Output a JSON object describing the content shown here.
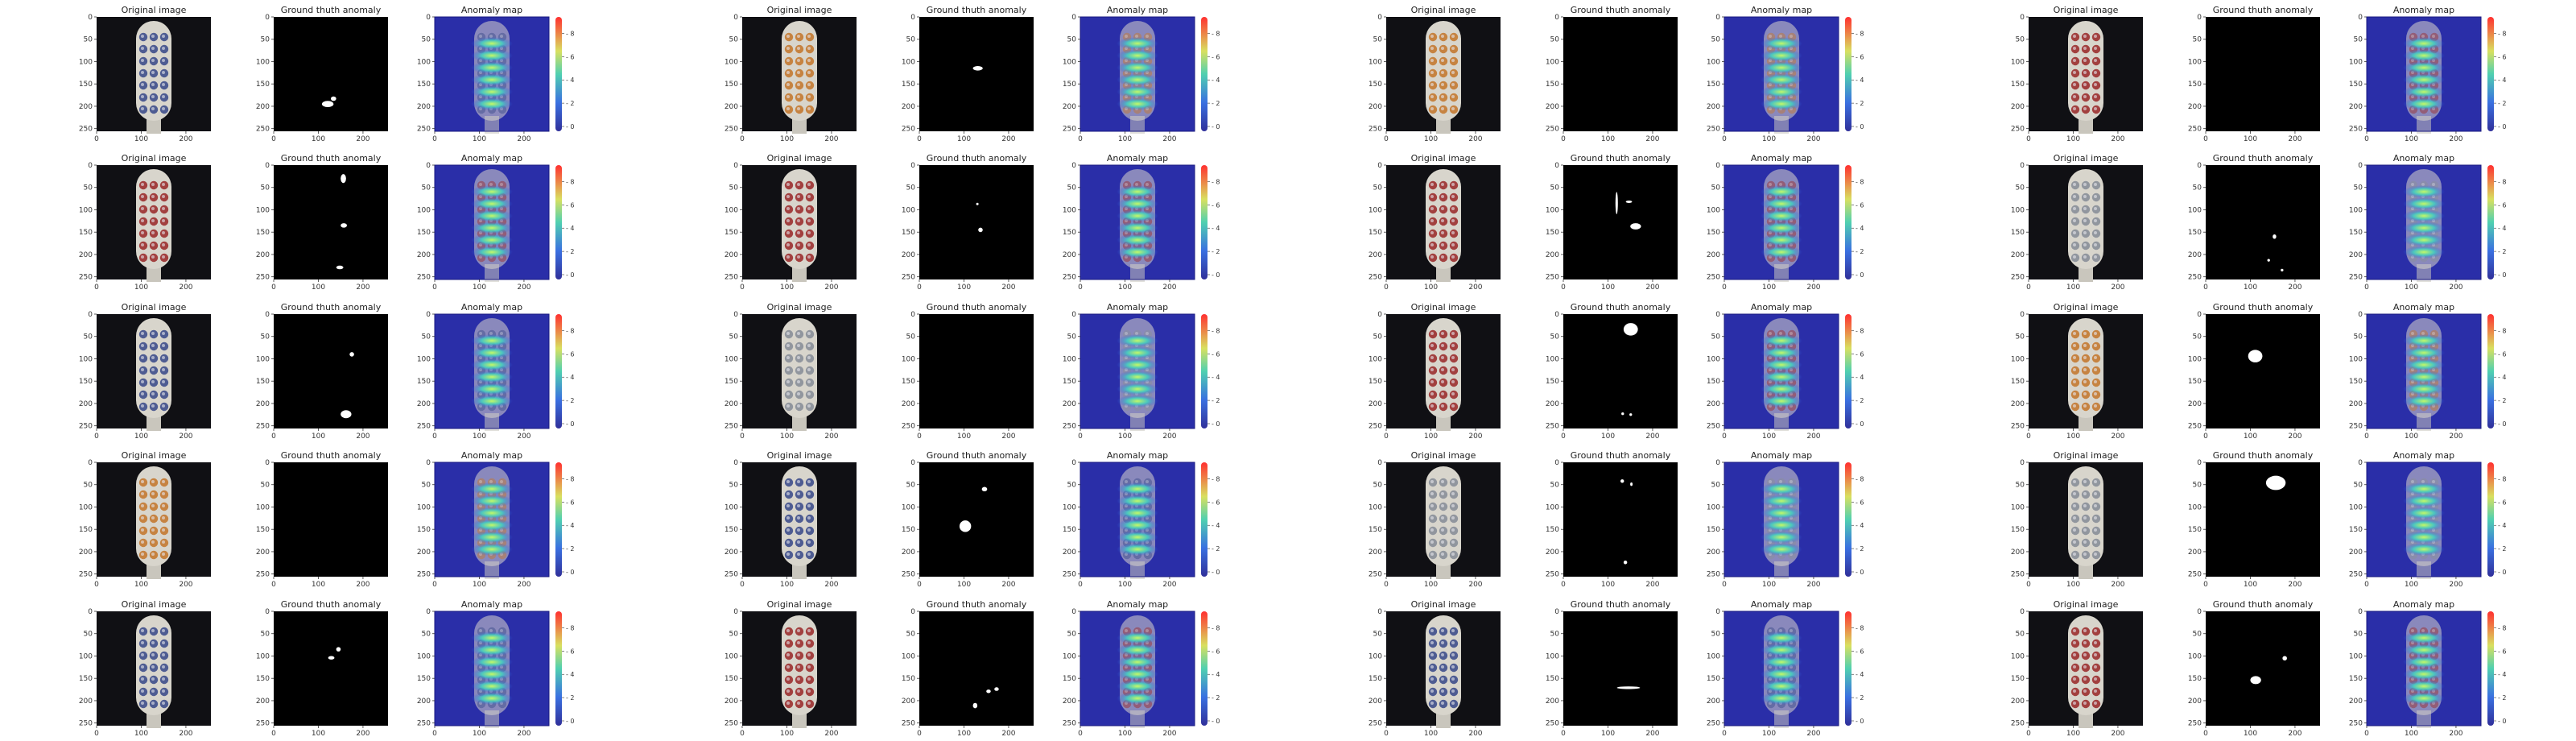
{
  "panel_titles": {
    "original": "Original image",
    "ground_truth": "Ground thuth anomaly",
    "anomaly_map": "Anomaly map"
  },
  "x_ticks": [
    "0",
    "100",
    "200"
  ],
  "y_ticks": [
    "0",
    "50",
    "100",
    "150",
    "200",
    "250"
  ],
  "colorbar_ticks": [
    "0",
    "2",
    "4",
    "6",
    "8"
  ],
  "colors": {
    "background": "#ffffff",
    "image_bg": "#101014",
    "mask_bg": "#000000",
    "mask_fg": "#ffffff",
    "colormap_low": "#3b3bd6",
    "colormap_high": "#ff4040"
  },
  "tint_palette": {
    "blue": "#3f4f8c",
    "red": "#9c3030",
    "orange": "#c47a32",
    "gray": "#8a8f99"
  },
  "samples": [
    {
      "row": 1,
      "group": 1,
      "tint": "blue",
      "gt": [
        [
          108,
          188,
          26,
          14
        ],
        [
          128,
          178,
          12,
          10
        ]
      ]
    },
    {
      "row": 1,
      "group": 2,
      "tint": "orange",
      "gt": [
        [
          120,
          110,
          22,
          10
        ]
      ]
    },
    {
      "row": 1,
      "group": 3,
      "tint": "orange",
      "gt": []
    },
    {
      "row": 1,
      "group": 4,
      "tint": "red",
      "gt": []
    },
    {
      "row": 2,
      "group": 1,
      "tint": "red",
      "gt": [
        [
          150,
          20,
          12,
          20
        ],
        [
          150,
          130,
          14,
          10
        ],
        [
          140,
          225,
          16,
          8
        ]
      ]
    },
    {
      "row": 2,
      "group": 2,
      "tint": "red",
      "gt": [
        [
          128,
          85,
          4,
          4
        ],
        [
          132,
          140,
          10,
          10
        ]
      ]
    },
    {
      "row": 2,
      "group": 3,
      "tint": "red",
      "gt": [
        [
          118,
          60,
          3,
          50
        ],
        [
          150,
          130,
          24,
          14
        ],
        [
          140,
          80,
          14,
          4
        ]
      ]
    },
    {
      "row": 2,
      "group": 4,
      "tint": "gray",
      "gt": [
        [
          150,
          155,
          8,
          10
        ],
        [
          138,
          210,
          6,
          6
        ],
        [
          168,
          232,
          6,
          6
        ]
      ]
    },
    {
      "row": 3,
      "group": 1,
      "tint": "blue",
      "gt": [
        [
          170,
          85,
          10,
          10
        ],
        [
          150,
          215,
          24,
          18
        ]
      ]
    },
    {
      "row": 3,
      "group": 2,
      "tint": "gray",
      "gt": []
    },
    {
      "row": 3,
      "group": 3,
      "tint": "red",
      "gt": [
        [
          135,
          20,
          32,
          28
        ],
        [
          130,
          220,
          6,
          6
        ],
        [
          148,
          222,
          6,
          6
        ]
      ]
    },
    {
      "row": 3,
      "group": 4,
      "tint": "orange",
      "gt": [
        [
          95,
          80,
          32,
          28
        ]
      ]
    },
    {
      "row": 4,
      "group": 1,
      "tint": "orange",
      "gt": []
    },
    {
      "row": 4,
      "group": 2,
      "tint": "blue",
      "gt": [
        [
          140,
          55,
          12,
          10
        ],
        [
          90,
          130,
          26,
          26
        ]
      ]
    },
    {
      "row": 4,
      "group": 3,
      "tint": "gray",
      "gt": [
        [
          128,
          38,
          8,
          8
        ],
        [
          150,
          45,
          5,
          8
        ],
        [
          135,
          220,
          8,
          8
        ]
      ]
    },
    {
      "row": 4,
      "group": 4,
      "tint": "gray",
      "gt": [
        [
          135,
          30,
          44,
          32
        ]
      ]
    },
    {
      "row": 5,
      "group": 1,
      "tint": "blue",
      "gt": [
        [
          140,
          80,
          10,
          10
        ],
        [
          122,
          100,
          14,
          8
        ]
      ]
    },
    {
      "row": 5,
      "group": 2,
      "tint": "red",
      "gt": [
        [
          150,
          175,
          10,
          8
        ],
        [
          168,
          170,
          10,
          8
        ],
        [
          120,
          205,
          10,
          12
        ]
      ]
    },
    {
      "row": 5,
      "group": 3,
      "tint": "blue",
      "gt": [
        [
          120,
          168,
          52,
          6
        ]
      ]
    },
    {
      "row": 5,
      "group": 4,
      "tint": "red",
      "gt": [
        [
          100,
          145,
          24,
          18
        ],
        [
          172,
          100,
          10,
          10
        ]
      ]
    }
  ]
}
